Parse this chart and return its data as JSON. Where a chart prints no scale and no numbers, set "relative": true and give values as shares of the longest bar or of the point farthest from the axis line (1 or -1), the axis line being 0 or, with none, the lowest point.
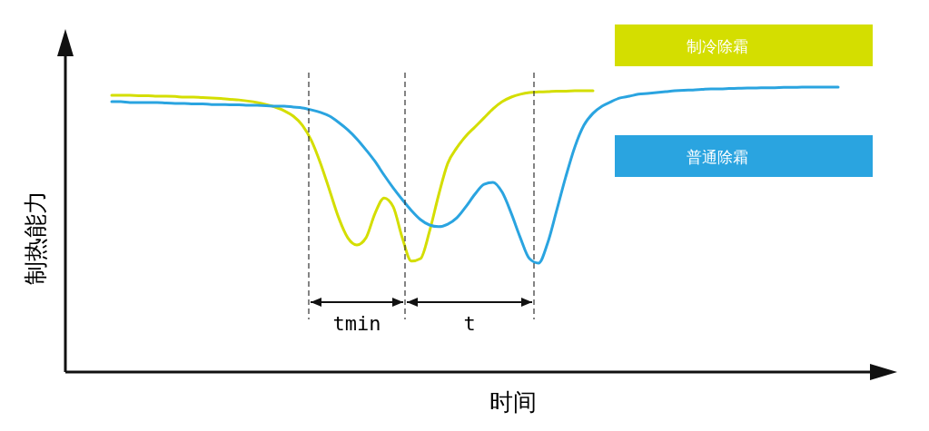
{
  "chart_data": {
    "type": "line",
    "relative": true,
    "xlabel": "时间",
    "ylabel": "制热能力",
    "legend": "top right",
    "categories": [
      null,
      null,
      null,
      null,
      null,
      null,
      null,
      null,
      null,
      null,
      null,
      null,
      null,
      null,
      null,
      null,
      null,
      null,
      null,
      null,
      null,
      null,
      null,
      null,
      null,
      null,
      null,
      null,
      null,
      null,
      null,
      null,
      null,
      null,
      null,
      null,
      null,
      null,
      null,
      null,
      null,
      null,
      null,
      null,
      null,
      null,
      null,
      null,
      null,
      null,
      null,
      null,
      null,
      null,
      null,
      null,
      null,
      null,
      null,
      null,
      null,
      null,
      null,
      null,
      null,
      null,
      null,
      null,
      null,
      null,
      null,
      null,
      null,
      null,
      null,
      null,
      null,
      null,
      null,
      null,
      null
    ],
    "series": [
      {
        "name": "制冷除霜",
        "color": "#d4de00",
        "values": [
          0.971,
          0.971,
          0.971,
          0.97,
          0.97,
          0.968,
          0.968,
          0.967,
          0.965,
          0.965,
          0.963,
          0.962,
          0.96,
          0.957,
          0.955,
          0.951,
          0.946,
          0.939,
          0.93,
          0.917,
          0.898,
          0.866,
          0.812,
          0.732,
          0.637,
          0.541,
          0.471,
          0.446,
          0.471,
          0.557,
          0.611,
          0.58,
          0.471,
          0.389,
          0.398,
          0.494,
          0.621,
          0.732,
          0.787,
          0.828,
          0.86,
          0.892,
          0.924,
          0.949,
          0.965,
          0.975,
          0.981,
          0.983,
          0.984,
          0.986,
          0.986,
          0.987,
          0.987,
          0.987,
          null,
          null,
          null,
          null,
          null,
          null,
          null,
          null,
          null,
          null,
          null,
          null,
          null,
          null,
          null,
          null,
          null,
          null,
          null,
          null,
          null,
          null,
          null,
          null,
          null,
          null,
          null
        ]
      },
      {
        "name": "普通除霜",
        "color": "#2aa4e0",
        "values": [
          0.949,
          0.949,
          0.946,
          0.946,
          0.946,
          0.946,
          0.944,
          0.943,
          0.943,
          0.941,
          0.941,
          0.939,
          0.939,
          0.938,
          0.938,
          0.936,
          0.936,
          0.935,
          0.933,
          0.933,
          0.93,
          0.927,
          0.92,
          0.911,
          0.898,
          0.876,
          0.85,
          0.818,
          0.78,
          0.739,
          0.691,
          0.646,
          0.605,
          0.567,
          0.535,
          0.516,
          0.51,
          0.519,
          0.541,
          0.58,
          0.624,
          0.659,
          0.666,
          0.631,
          0.557,
          0.471,
          0.398,
          0.382,
          0.452,
          0.567,
          0.685,
          0.79,
          0.866,
          0.908,
          0.933,
          0.949,
          0.962,
          0.968,
          0.975,
          0.978,
          0.981,
          0.984,
          0.987,
          0.989,
          0.99,
          0.992,
          0.994,
          0.994,
          0.995,
          0.996,
          0.997,
          0.997,
          0.998,
          0.998,
          0.999,
          0.999,
          1,
          1,
          1,
          1,
          1
        ]
      }
    ],
    "annotations": [
      "tmin",
      "t"
    ]
  }
}
